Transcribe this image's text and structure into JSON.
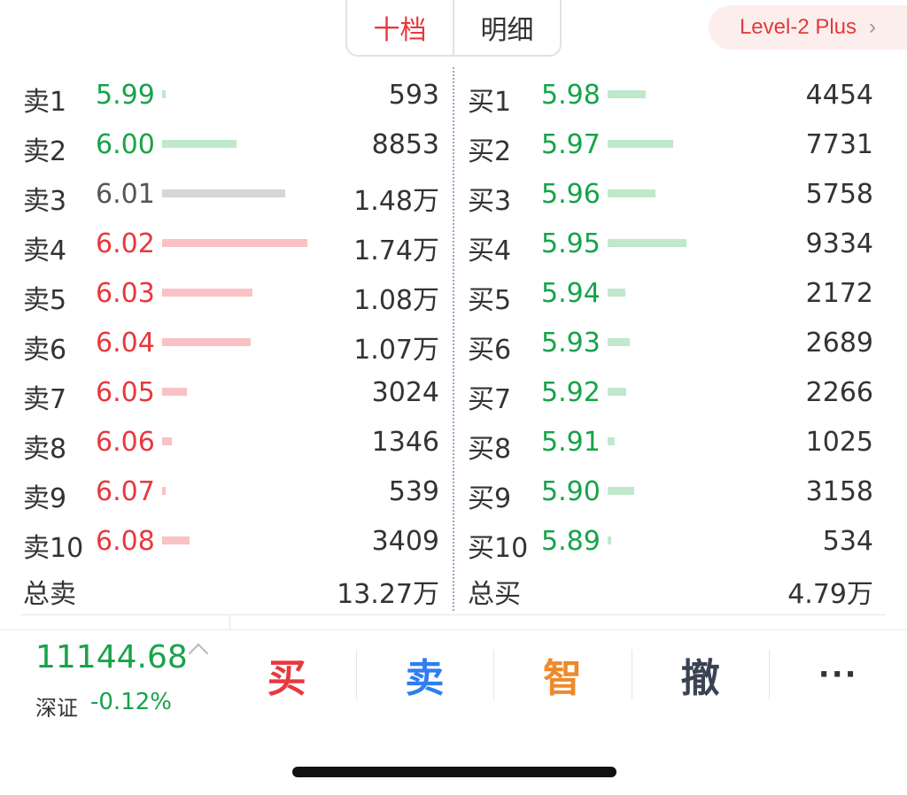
{
  "tabs": [
    {
      "label": "十档",
      "active": true
    },
    {
      "label": "明细",
      "active": false
    }
  ],
  "level2_label": "Level-2 Plus",
  "colors": {
    "up": "#e8383d",
    "down": "#17a34a",
    "flat": "#555555",
    "bar_up": "#f9c2c4",
    "bar_down": "#bfe8cc",
    "bar_flat": "#d6d6d6",
    "buy": "#e8383d",
    "sell": "#2f7ef0",
    "smart": "#ee8a2c",
    "cancel": "#3a4254"
  },
  "sell_orders": [
    {
      "label": "卖1",
      "price": "5.99",
      "dir": "down",
      "fill": 0.02,
      "volume": "593"
    },
    {
      "label": "卖2",
      "price": "6.00",
      "dir": "down",
      "fill": 0.51,
      "volume": "8853"
    },
    {
      "label": "卖3",
      "price": "6.01",
      "dir": "flat",
      "fill": 0.85,
      "volume": "1.48万"
    },
    {
      "label": "卖4",
      "price": "6.02",
      "dir": "up",
      "fill": 1.0,
      "volume": "1.74万"
    },
    {
      "label": "卖5",
      "price": "6.03",
      "dir": "up",
      "fill": 0.62,
      "volume": "1.08万"
    },
    {
      "label": "卖6",
      "price": "6.04",
      "dir": "up",
      "fill": 0.61,
      "volume": "1.07万"
    },
    {
      "label": "卖7",
      "price": "6.05",
      "dir": "up",
      "fill": 0.17,
      "volume": "3024"
    },
    {
      "label": "卖8",
      "price": "6.06",
      "dir": "up",
      "fill": 0.07,
      "volume": "1346"
    },
    {
      "label": "卖9",
      "price": "6.07",
      "dir": "up",
      "fill": 0.02,
      "volume": "539"
    },
    {
      "label": "卖10",
      "price": "6.08",
      "dir": "up",
      "fill": 0.19,
      "volume": "3409"
    }
  ],
  "buy_orders": [
    {
      "label": "买1",
      "price": "5.98",
      "dir": "down",
      "fill": 0.26,
      "volume": "4454"
    },
    {
      "label": "买2",
      "price": "5.97",
      "dir": "down",
      "fill": 0.45,
      "volume": "7731"
    },
    {
      "label": "买3",
      "price": "5.96",
      "dir": "down",
      "fill": 0.33,
      "volume": "5758"
    },
    {
      "label": "买4",
      "price": "5.95",
      "dir": "down",
      "fill": 0.54,
      "volume": "9334"
    },
    {
      "label": "买5",
      "price": "5.94",
      "dir": "down",
      "fill": 0.12,
      "volume": "2172"
    },
    {
      "label": "买6",
      "price": "5.93",
      "dir": "down",
      "fill": 0.15,
      "volume": "2689"
    },
    {
      "label": "买7",
      "price": "5.92",
      "dir": "down",
      "fill": 0.13,
      "volume": "2266"
    },
    {
      "label": "买8",
      "price": "5.91",
      "dir": "down",
      "fill": 0.05,
      "volume": "1025"
    },
    {
      "label": "买9",
      "price": "5.90",
      "dir": "down",
      "fill": 0.18,
      "volume": "3158"
    },
    {
      "label": "买10",
      "price": "5.89",
      "dir": "down",
      "fill": 0.02,
      "volume": "534"
    }
  ],
  "totals": {
    "sell_label": "总卖",
    "sell_value": "13.27万",
    "buy_label": "总买",
    "buy_value": "4.79万"
  },
  "index": {
    "value": "11144.68",
    "name": "深证",
    "change": "-0.12%",
    "arrow_icon": "chevron-up-icon"
  },
  "actions": {
    "buy": "买",
    "sell": "卖",
    "smart": "智",
    "cancel": "撤",
    "more": "···"
  }
}
